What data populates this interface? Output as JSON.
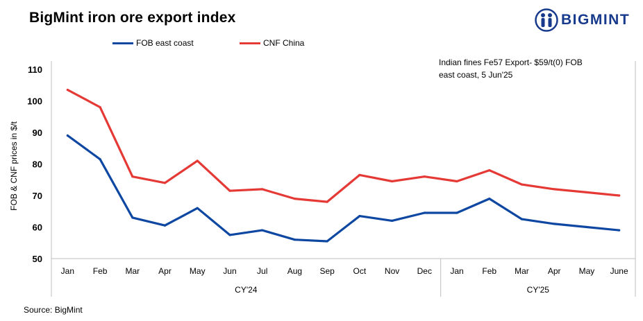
{
  "title": "BigMint iron ore export index",
  "brand": {
    "name": "BIGMINT",
    "color": "#173a8c"
  },
  "annotation": {
    "line1": "Indian fines Fe57 Export- $59/t(0) FOB",
    "line2": "east coast, 5 Jun'25"
  },
  "source": "Source: BigMint",
  "chart_data": {
    "type": "line",
    "title": "BigMint iron ore export index",
    "xlabel": "",
    "ylabel": "FOB & CNF prices in $/t",
    "ylim": [
      50,
      110
    ],
    "yticks": [
      50,
      60,
      70,
      80,
      90,
      100,
      110
    ],
    "grid": false,
    "legend": "top",
    "categories": [
      "Jan",
      "Feb",
      "Mar",
      "Apr",
      "May",
      "Jun",
      "Jul",
      "Aug",
      "Sep",
      "Oct",
      "Nov",
      "Dec",
      "Jan",
      "Feb",
      "Mar",
      "Apr",
      "May",
      "June"
    ],
    "groups": [
      {
        "label": "CY'24",
        "start": 0,
        "end": 11
      },
      {
        "label": "CY'25",
        "start": 12,
        "end": 17
      }
    ],
    "series": [
      {
        "name": "FOB east coast",
        "color": "#0d47a1",
        "values": [
          89,
          81.5,
          63,
          60.5,
          66,
          57.5,
          59,
          56,
          55.5,
          63.5,
          62,
          64.5,
          64.5,
          69,
          62.5,
          61,
          60,
          59
        ]
      },
      {
        "name": "CNF China",
        "color": "#e53935",
        "values": [
          103.5,
          98,
          76,
          74,
          81,
          71.5,
          72,
          69,
          68,
          76.5,
          74.5,
          76,
          74.5,
          78,
          73.5,
          72,
          71,
          70
        ]
      }
    ]
  }
}
